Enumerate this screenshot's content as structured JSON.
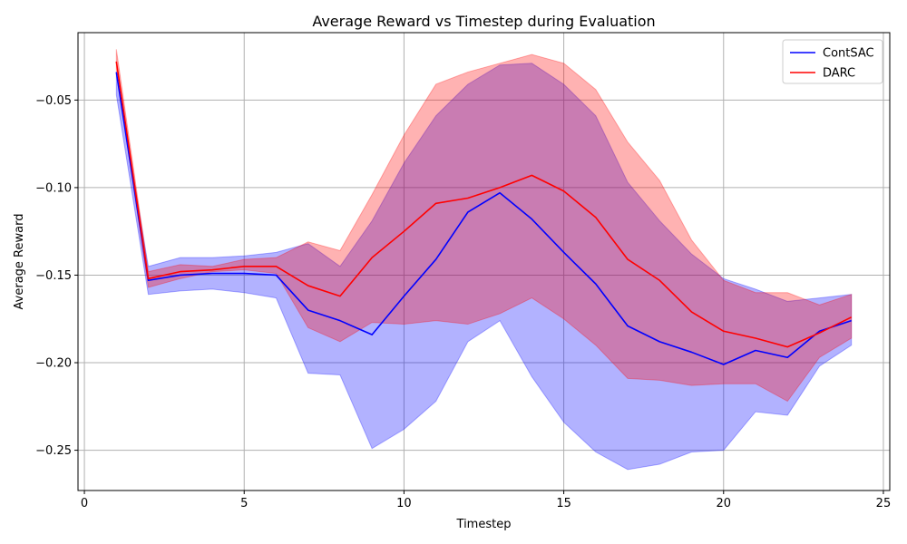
{
  "chart_data": {
    "type": "line",
    "title": "Average Reward vs Timestep during Evaluation",
    "xlabel": "Timestep",
    "ylabel": "Average Reward",
    "xlim": [
      -0.2,
      25.2
    ],
    "ylim": [
      -0.273,
      -0.0115
    ],
    "xticks": [
      0,
      5,
      10,
      15,
      20,
      25
    ],
    "xtick_labels": [
      "0",
      "5",
      "10",
      "15",
      "20",
      "25"
    ],
    "yticks": [
      -0.25,
      -0.2,
      -0.15,
      -0.1,
      -0.05
    ],
    "ytick_labels": [
      "−0.25",
      "−0.20",
      "−0.15",
      "−0.10",
      "−0.05"
    ],
    "grid": true,
    "legend_position": "top-right",
    "x": [
      1,
      2,
      3,
      4,
      5,
      6,
      7,
      8,
      9,
      10,
      11,
      12,
      13,
      14,
      15,
      16,
      17,
      18,
      19,
      20,
      21,
      22,
      23,
      24
    ],
    "series": [
      {
        "name": "ContSAC",
        "color": "#0000ff",
        "band_color": "#0000ff",
        "band_opacity": 0.3,
        "values": [
          -0.034,
          -0.153,
          -0.15,
          -0.149,
          -0.149,
          -0.15,
          -0.17,
          -0.176,
          -0.184,
          -0.162,
          -0.141,
          -0.114,
          -0.103,
          -0.118,
          -0.137,
          -0.155,
          -0.179,
          -0.188,
          -0.194,
          -0.201,
          -0.193,
          -0.197,
          -0.182,
          -0.176
        ],
        "upper": [
          -0.035,
          -0.145,
          -0.14,
          -0.14,
          -0.139,
          -0.137,
          -0.132,
          -0.145,
          -0.119,
          -0.086,
          -0.059,
          -0.041,
          -0.03,
          -0.029,
          -0.041,
          -0.059,
          -0.097,
          -0.119,
          -0.138,
          -0.152,
          -0.158,
          -0.165,
          -0.163,
          -0.161
        ],
        "lower": [
          -0.047,
          -0.161,
          -0.159,
          -0.158,
          -0.16,
          -0.163,
          -0.206,
          -0.207,
          -0.249,
          -0.238,
          -0.222,
          -0.188,
          -0.176,
          -0.208,
          -0.234,
          -0.251,
          -0.261,
          -0.258,
          -0.251,
          -0.25,
          -0.228,
          -0.23,
          -0.202,
          -0.19
        ]
      },
      {
        "name": "DARC",
        "color": "#ff0000",
        "band_color": "#ff0000",
        "band_opacity": 0.3,
        "values": [
          -0.028,
          -0.152,
          -0.148,
          -0.147,
          -0.145,
          -0.145,
          -0.156,
          -0.162,
          -0.14,
          -0.125,
          -0.109,
          -0.106,
          -0.1,
          -0.093,
          -0.102,
          -0.117,
          -0.141,
          -0.153,
          -0.171,
          -0.182,
          -0.186,
          -0.191,
          -0.183,
          -0.174
        ],
        "upper": [
          -0.021,
          -0.148,
          -0.144,
          -0.145,
          -0.141,
          -0.14,
          -0.131,
          -0.136,
          -0.104,
          -0.07,
          -0.041,
          -0.034,
          -0.029,
          -0.024,
          -0.029,
          -0.044,
          -0.074,
          -0.096,
          -0.13,
          -0.153,
          -0.16,
          -0.16,
          -0.167,
          -0.161
        ],
        "lower": [
          -0.033,
          -0.157,
          -0.152,
          -0.148,
          -0.147,
          -0.149,
          -0.18,
          -0.188,
          -0.177,
          -0.178,
          -0.176,
          -0.178,
          -0.172,
          -0.163,
          -0.175,
          -0.19,
          -0.209,
          -0.21,
          -0.213,
          -0.212,
          -0.212,
          -0.222,
          -0.197,
          -0.186
        ]
      }
    ]
  }
}
